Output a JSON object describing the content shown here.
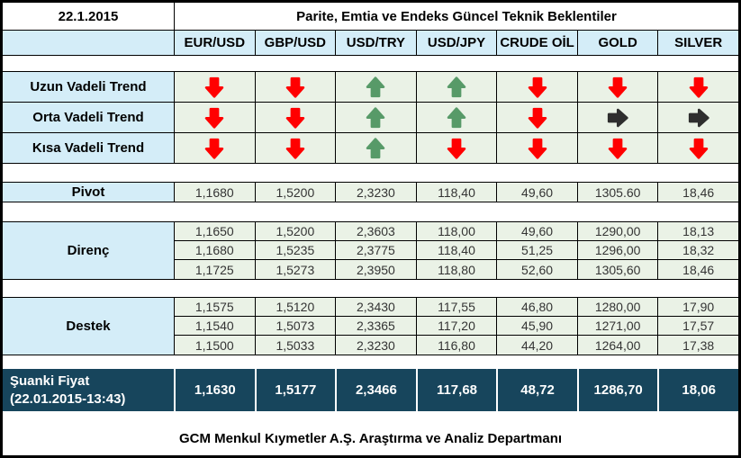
{
  "report": {
    "date": "22.1.2015",
    "title": "Parite, Emtia ve Endeks Güncel Teknik Beklentiler",
    "footer": "GCM Menkul Kıymetler A.Ş. Araştırma ve Analiz Departmanı"
  },
  "columns": [
    "EUR/USD",
    "GBP/USD",
    "USD/TRY",
    "USD/JPY",
    "CRUDE OİL",
    "GOLD",
    "SILVER"
  ],
  "trends": {
    "rows": [
      {
        "label": "Uzun Vadeli Trend",
        "directions": [
          "down",
          "down",
          "up",
          "up",
          "down",
          "down",
          "down"
        ]
      },
      {
        "label": "Orta Vadeli Trend",
        "directions": [
          "down",
          "down",
          "up",
          "up",
          "down",
          "right",
          "right"
        ]
      },
      {
        "label": "Kısa Vadeli Trend",
        "directions": [
          "down",
          "down",
          "up",
          "down",
          "down",
          "down",
          "down"
        ]
      }
    ]
  },
  "pivot": {
    "label": "Pivot",
    "values": [
      "1,1680",
      "1,5200",
      "2,3230",
      "118,40",
      "49,60",
      "1305.60",
      "18,46"
    ]
  },
  "resistance": {
    "label": "Direnç",
    "rows": [
      [
        "1,1650",
        "1,5200",
        "2,3603",
        "118,00",
        "49,60",
        "1290,00",
        "18,13"
      ],
      [
        "1,1680",
        "1,5235",
        "2,3775",
        "118,40",
        "51,25",
        "1296,00",
        "18,32"
      ],
      [
        "1,1725",
        "1,5273",
        "2,3950",
        "118,80",
        "52,60",
        "1305,60",
        "18,46"
      ]
    ]
  },
  "support": {
    "label": "Destek",
    "rows": [
      [
        "1,1575",
        "1,5120",
        "2,3430",
        "117,55",
        "46,80",
        "1280,00",
        "17,90"
      ],
      [
        "1,1540",
        "1,5073",
        "2,3365",
        "117,20",
        "45,90",
        "1271,00",
        "17,57"
      ],
      [
        "1,1500",
        "1,5033",
        "2,3230",
        "116,80",
        "44,20",
        "1264,00",
        "17,38"
      ]
    ]
  },
  "current_price": {
    "label": "Şuanki Fiyat",
    "timestamp": "(22.01.2015-13:43)",
    "values": [
      "1,1630",
      "1,5177",
      "2,3466",
      "117,68",
      "48,72",
      "1286,70",
      "18,06"
    ]
  },
  "icons": {
    "up": {
      "name": "trend-up-arrow-icon",
      "glyph": "⬆"
    },
    "down": {
      "name": "trend-down-arrow-icon",
      "glyph": "⬇"
    },
    "right": {
      "name": "trend-right-arrow-icon",
      "glyph": "➡"
    }
  },
  "colors": {
    "header_blue": "#d4edf8",
    "cell_green": "#eaf2e6",
    "navy": "#17455c",
    "arrow_up_green": "#579a68",
    "arrow_down_red": "#ff0000",
    "arrow_right_dark": "#2e2e2e",
    "grid_line": "#000000"
  }
}
